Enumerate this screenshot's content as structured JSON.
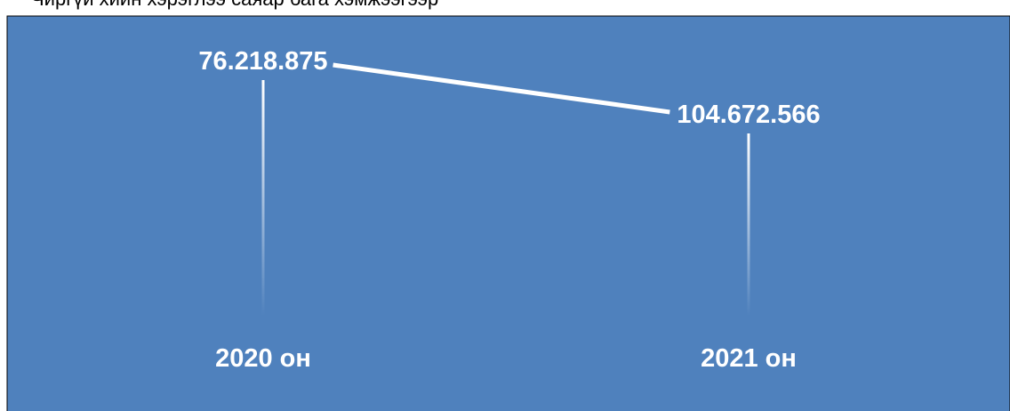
{
  "header": {
    "text": "Чиргүй хийн хэрэглээ саяар бага хэмжээгээр"
  },
  "chart_data": {
    "type": "line",
    "categories": [
      "2020 он",
      "2021 он"
    ],
    "values": [
      76218875,
      104672566
    ],
    "value_labels": [
      "76.218.875",
      "104.672.566"
    ],
    "title": "",
    "xlabel": "",
    "ylabel": "",
    "grid": false,
    "legend": "none",
    "colors": {
      "background": "#4f81bd",
      "line": "#ffffff",
      "text": "#ffffff",
      "frame": "#000000"
    }
  }
}
